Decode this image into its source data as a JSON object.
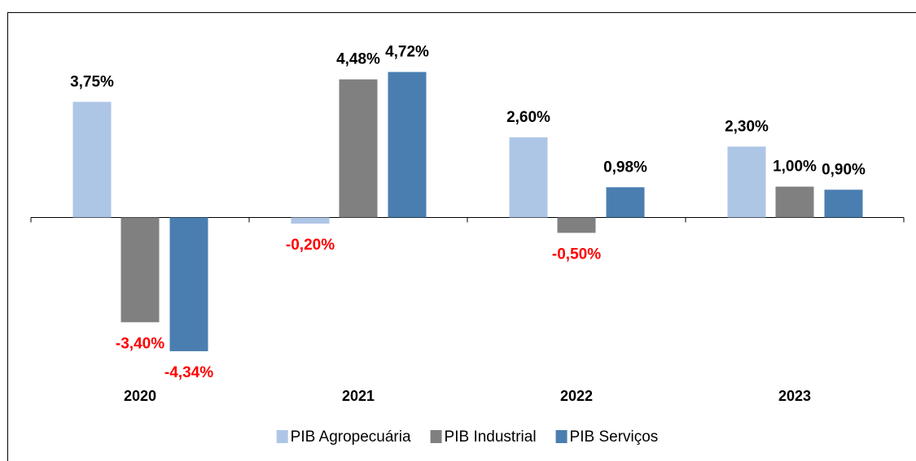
{
  "chart_data": {
    "type": "bar",
    "categories": [
      "2020",
      "2021",
      "2022",
      "2023"
    ],
    "series": [
      {
        "name": "PIB Agropecuária",
        "color": "#aec6e6",
        "values": [
          3.75,
          -0.2,
          2.6,
          2.3
        ],
        "value_labels": [
          "3,75%",
          "-0,20%",
          "2,60%",
          "2,30%"
        ]
      },
      {
        "name": "PIB Industrial",
        "color": "#808080",
        "values": [
          -3.4,
          4.48,
          -0.5,
          1.0
        ],
        "value_labels": [
          "-3,40%",
          "4,48%",
          "-0,50%",
          "1,00%"
        ]
      },
      {
        "name": "PIB Serviços",
        "color": "#4a7eb0",
        "values": [
          -4.34,
          4.72,
          0.98,
          0.9
        ],
        "value_labels": [
          "-4,34%",
          "4,72%",
          "0,98%",
          "0,90%"
        ]
      }
    ],
    "ylim": [
      -5,
      6
    ],
    "value_label_color": "#000000",
    "negative_value_label_color": "#ff0000",
    "legend": "bottom"
  }
}
